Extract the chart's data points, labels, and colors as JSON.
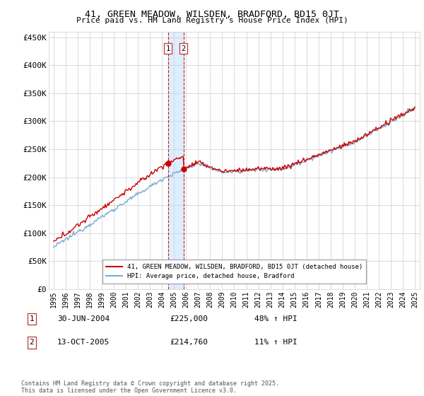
{
  "title": "41, GREEN MEADOW, WILSDEN, BRADFORD, BD15 0JT",
  "subtitle": "Price paid vs. HM Land Registry's House Price Index (HPI)",
  "legend_label_red": "41, GREEN MEADOW, WILSDEN, BRADFORD, BD15 0JT (detached house)",
  "legend_label_blue": "HPI: Average price, detached house, Bradford",
  "transaction1_label": "1",
  "transaction1_date": "30-JUN-2004",
  "transaction1_price": "£225,000",
  "transaction1_hpi": "48% ↑ HPI",
  "transaction2_label": "2",
  "transaction2_date": "13-OCT-2005",
  "transaction2_price": "£214,760",
  "transaction2_hpi": "11% ↑ HPI",
  "footer": "Contains HM Land Registry data © Crown copyright and database right 2025.\nThis data is licensed under the Open Government Licence v3.0.",
  "red_color": "#cc0000",
  "blue_color": "#7aaad0",
  "shade_color": "#ddeeff",
  "marker1_x": 2004.5,
  "marker1_y": 225000,
  "marker2_x": 2005.79,
  "marker2_y": 214760,
  "ylim": [
    0,
    460000
  ],
  "yticks": [
    0,
    50000,
    100000,
    150000,
    200000,
    250000,
    300000,
    350000,
    400000,
    450000
  ],
  "xlim_start": 1994.6,
  "xlim_end": 2025.4
}
